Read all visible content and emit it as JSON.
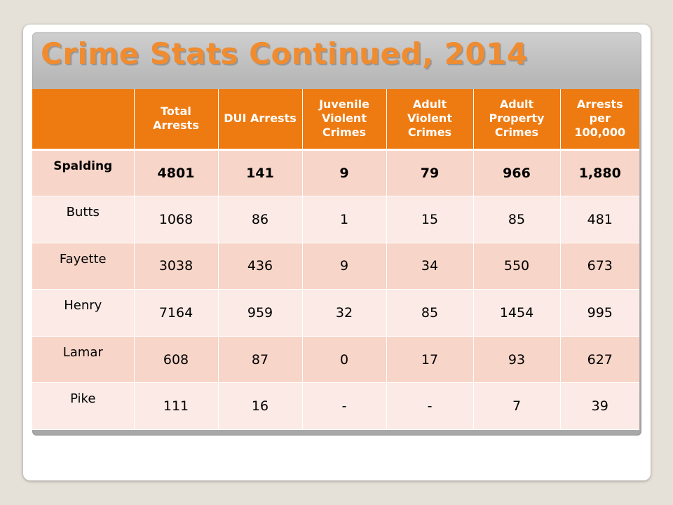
{
  "title": "Crime Stats Continued, 2014",
  "table": {
    "headers": [
      "",
      "Total Arrests",
      "DUI Arrests",
      "Juvenile Violent Crimes",
      "Adult Violent Crimes",
      "Adult Property Crimes",
      "Arrests per 100,000"
    ],
    "rows": [
      {
        "county": "Spalding",
        "cells": [
          "4801",
          "141",
          "9",
          "79",
          "966",
          "1,880"
        ]
      },
      {
        "county": "Butts",
        "cells": [
          "1068",
          "86",
          "1",
          "15",
          "85",
          "481"
        ]
      },
      {
        "county": "Fayette",
        "cells": [
          "3038",
          "436",
          "9",
          "34",
          "550",
          "673"
        ]
      },
      {
        "county": "Henry",
        "cells": [
          "7164",
          "959",
          "32",
          "85",
          "1454",
          "995"
        ]
      },
      {
        "county": "Lamar",
        "cells": [
          "608",
          "87",
          "0",
          "17",
          "93",
          "627"
        ]
      },
      {
        "county": "Pike",
        "cells": [
          "111",
          "16",
          "-",
          "-",
          "7",
          "39"
        ]
      }
    ]
  },
  "colors": {
    "header_fill": "#ee7b12",
    "title_text": "#f08c2f",
    "row_dark": "#f7d5c8",
    "row_light": "#fbeae5"
  }
}
